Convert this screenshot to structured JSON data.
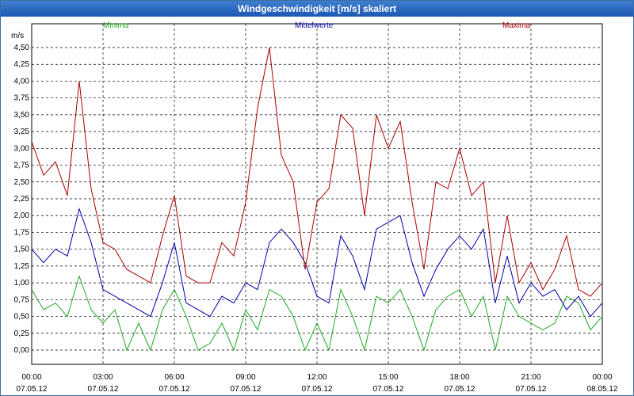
{
  "window": {
    "title": "Windgeschwindigkeit [m/s] skaliert"
  },
  "chart_data": {
    "type": "line",
    "title": "Windgeschwindigkeit [m/s] skaliert",
    "ylabel": "m/s",
    "xlabel": "",
    "ylim": [
      0,
      4.5
    ],
    "yticks": [
      "0,00",
      "0,25",
      "0,50",
      "0,75",
      "1,00",
      "1,25",
      "1,50",
      "1,75",
      "2,00",
      "2,25",
      "2,50",
      "2,75",
      "3,00",
      "3,25",
      "3,50",
      "3,75",
      "4,00",
      "4,25",
      "4,50"
    ],
    "xlim": [
      0,
      24
    ],
    "xticks": [
      {
        "time": "00:00",
        "date": "07.05.12"
      },
      {
        "time": "03:00",
        "date": "07.05.12"
      },
      {
        "time": "06:00",
        "date": "07.05.12"
      },
      {
        "time": "09:00",
        "date": "07.05.12"
      },
      {
        "time": "12:00",
        "date": "07.05.12"
      },
      {
        "time": "15:00",
        "date": "07.05.12"
      },
      {
        "time": "18:00",
        "date": "07.05.12"
      },
      {
        "time": "21:00",
        "date": "07.05.12"
      },
      {
        "time": "00:00",
        "date": "08.05.12"
      }
    ],
    "grid": true,
    "legend_position": "top",
    "series": [
      {
        "name": "Minima",
        "color": "#22aa22",
        "x": [
          0,
          0.5,
          1,
          1.5,
          2,
          2.5,
          3,
          3.5,
          4,
          4.5,
          5,
          5.5,
          6,
          6.5,
          7,
          7.5,
          8,
          8.5,
          9,
          9.5,
          10,
          10.5,
          11,
          11.5,
          12,
          12.5,
          13,
          13.5,
          14,
          14.5,
          15,
          15.5,
          16,
          16.5,
          17,
          17.5,
          18,
          18.5,
          19,
          19.5,
          20,
          20.5,
          21,
          21.5,
          22,
          22.5,
          23,
          23.5,
          24
        ],
        "values": [
          0.9,
          0.6,
          0.7,
          0.5,
          1.1,
          0.6,
          0.4,
          0.6,
          0.0,
          0.4,
          0.0,
          0.6,
          0.9,
          0.5,
          0.0,
          0.1,
          0.4,
          0.0,
          0.6,
          0.3,
          0.9,
          0.8,
          0.5,
          0.0,
          0.4,
          0.0,
          0.9,
          0.5,
          0.0,
          0.8,
          0.7,
          0.9,
          0.5,
          0.0,
          0.6,
          0.8,
          0.9,
          0.5,
          0.8,
          0.0,
          0.8,
          0.5,
          0.4,
          0.3,
          0.4,
          0.8,
          0.7,
          0.3,
          0.5
        ]
      },
      {
        "name": "Mittelwerte",
        "color": "#0000aa",
        "x": [
          0,
          0.5,
          1,
          1.5,
          2,
          2.5,
          3,
          3.5,
          4,
          4.5,
          5,
          5.5,
          6,
          6.5,
          7,
          7.5,
          8,
          8.5,
          9,
          9.5,
          10,
          10.5,
          11,
          11.5,
          12,
          12.5,
          13,
          13.5,
          14,
          14.5,
          15,
          15.5,
          16,
          16.5,
          17,
          17.5,
          18,
          18.5,
          19,
          19.5,
          20,
          20.5,
          21,
          21.5,
          22,
          22.5,
          23,
          23.5,
          24
        ],
        "values": [
          1.5,
          1.3,
          1.5,
          1.4,
          2.1,
          1.6,
          0.9,
          0.8,
          0.7,
          0.6,
          0.5,
          1.0,
          1.6,
          0.7,
          0.6,
          0.5,
          0.8,
          0.7,
          1.0,
          0.9,
          1.6,
          1.8,
          1.6,
          1.3,
          0.8,
          0.7,
          1.7,
          1.4,
          0.9,
          1.8,
          1.9,
          2.0,
          1.3,
          0.8,
          1.2,
          1.5,
          1.7,
          1.5,
          1.8,
          0.7,
          1.4,
          0.7,
          1.0,
          0.8,
          0.9,
          0.6,
          0.8,
          0.5,
          0.7
        ]
      },
      {
        "name": "Maxima",
        "color": "#aa0000",
        "x": [
          0,
          0.5,
          1,
          1.5,
          2,
          2.5,
          3,
          3.5,
          4,
          4.5,
          5,
          5.5,
          6,
          6.5,
          7,
          7.5,
          8,
          8.5,
          9,
          9.5,
          10,
          10.5,
          11,
          11.5,
          12,
          12.5,
          13,
          13.5,
          14,
          14.5,
          15,
          15.5,
          16,
          16.5,
          17,
          17.5,
          18,
          18.5,
          19,
          19.5,
          20,
          20.5,
          21,
          21.5,
          22,
          22.5,
          23,
          23.5,
          24
        ],
        "values": [
          3.1,
          2.6,
          2.8,
          2.3,
          4.0,
          2.4,
          1.6,
          1.5,
          1.2,
          1.1,
          1.0,
          1.7,
          2.3,
          1.1,
          1.0,
          1.0,
          1.6,
          1.4,
          2.2,
          3.6,
          4.5,
          2.9,
          2.5,
          1.2,
          2.2,
          2.4,
          3.5,
          3.3,
          2.0,
          3.5,
          3.0,
          3.4,
          2.2,
          1.2,
          2.5,
          2.4,
          3.0,
          2.3,
          2.5,
          1.0,
          2.0,
          1.0,
          1.3,
          0.9,
          1.2,
          1.7,
          0.9,
          0.8,
          1.0
        ]
      }
    ]
  }
}
